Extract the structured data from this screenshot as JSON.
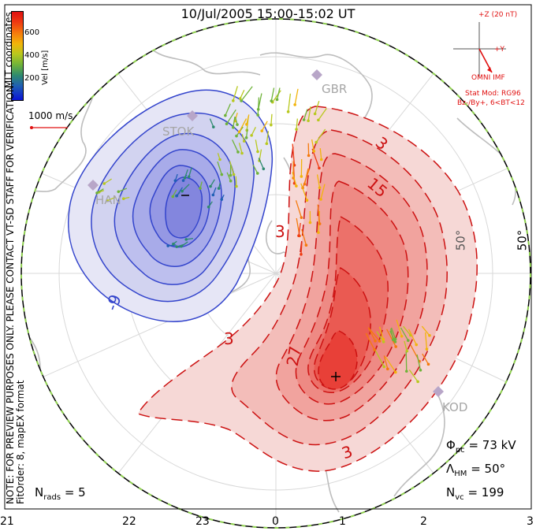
{
  "title": "10/Jul/2005  15:00-15:02  UT",
  "colorbar": {
    "unit": "Vel [m/s]",
    "ticks": [
      "600",
      "400",
      "200"
    ],
    "colors": [
      "#0a14d6",
      "#1f5fb4",
      "#2e8a6e",
      "#6fb33a",
      "#b8c81e",
      "#f2b40a",
      "#f57a0c",
      "#ef3b12",
      "#e01010"
    ]
  },
  "coord_label": "MLT coordinates",
  "scale_label": "1000 m/s",
  "note": "NOTE: FOR PREVIEW PURPOSES ONLY. PLEASE CONTACT VT-SD STAFF FOR VERIFICATION.",
  "fit_order": "FitOrder: 8, mapEX format",
  "imf": {
    "z_label": "+Z (20 nT)",
    "y_label": "+Y",
    "source": "OMNI IMF",
    "model": "Stat Mod: RG96",
    "condition": "Bz-/By+, 6<BT<12"
  },
  "stations": [
    "GBR",
    "STOK",
    "HAN",
    "KOD"
  ],
  "contour_labels": [
    "-9",
    "3",
    "15",
    "3",
    "27",
    "3",
    "3"
  ],
  "lat_labels": [
    "50°",
    "50°"
  ],
  "stats": {
    "phi_sym": "Φ",
    "phi_sub": "pc",
    "phi_val": "= 73 kV",
    "lambda_sym": "Λ",
    "lambda_sub": "HM",
    "lambda_val": "= 50°",
    "nrads_sym": "N",
    "nrads_sub": "rads",
    "nrads_val": "= 5",
    "nvc_sym": "N",
    "nvc_sub": "vc",
    "nvc_val": "= 199"
  },
  "mlt_axis": [
    "21",
    "22",
    "23",
    "0",
    "1",
    "2",
    "3"
  ],
  "colors": {
    "negative_cell": "#3344cc",
    "positive_cell": "#cc1111",
    "coast": "#bdbdbd",
    "boundary_green": "#8fd14f"
  }
}
